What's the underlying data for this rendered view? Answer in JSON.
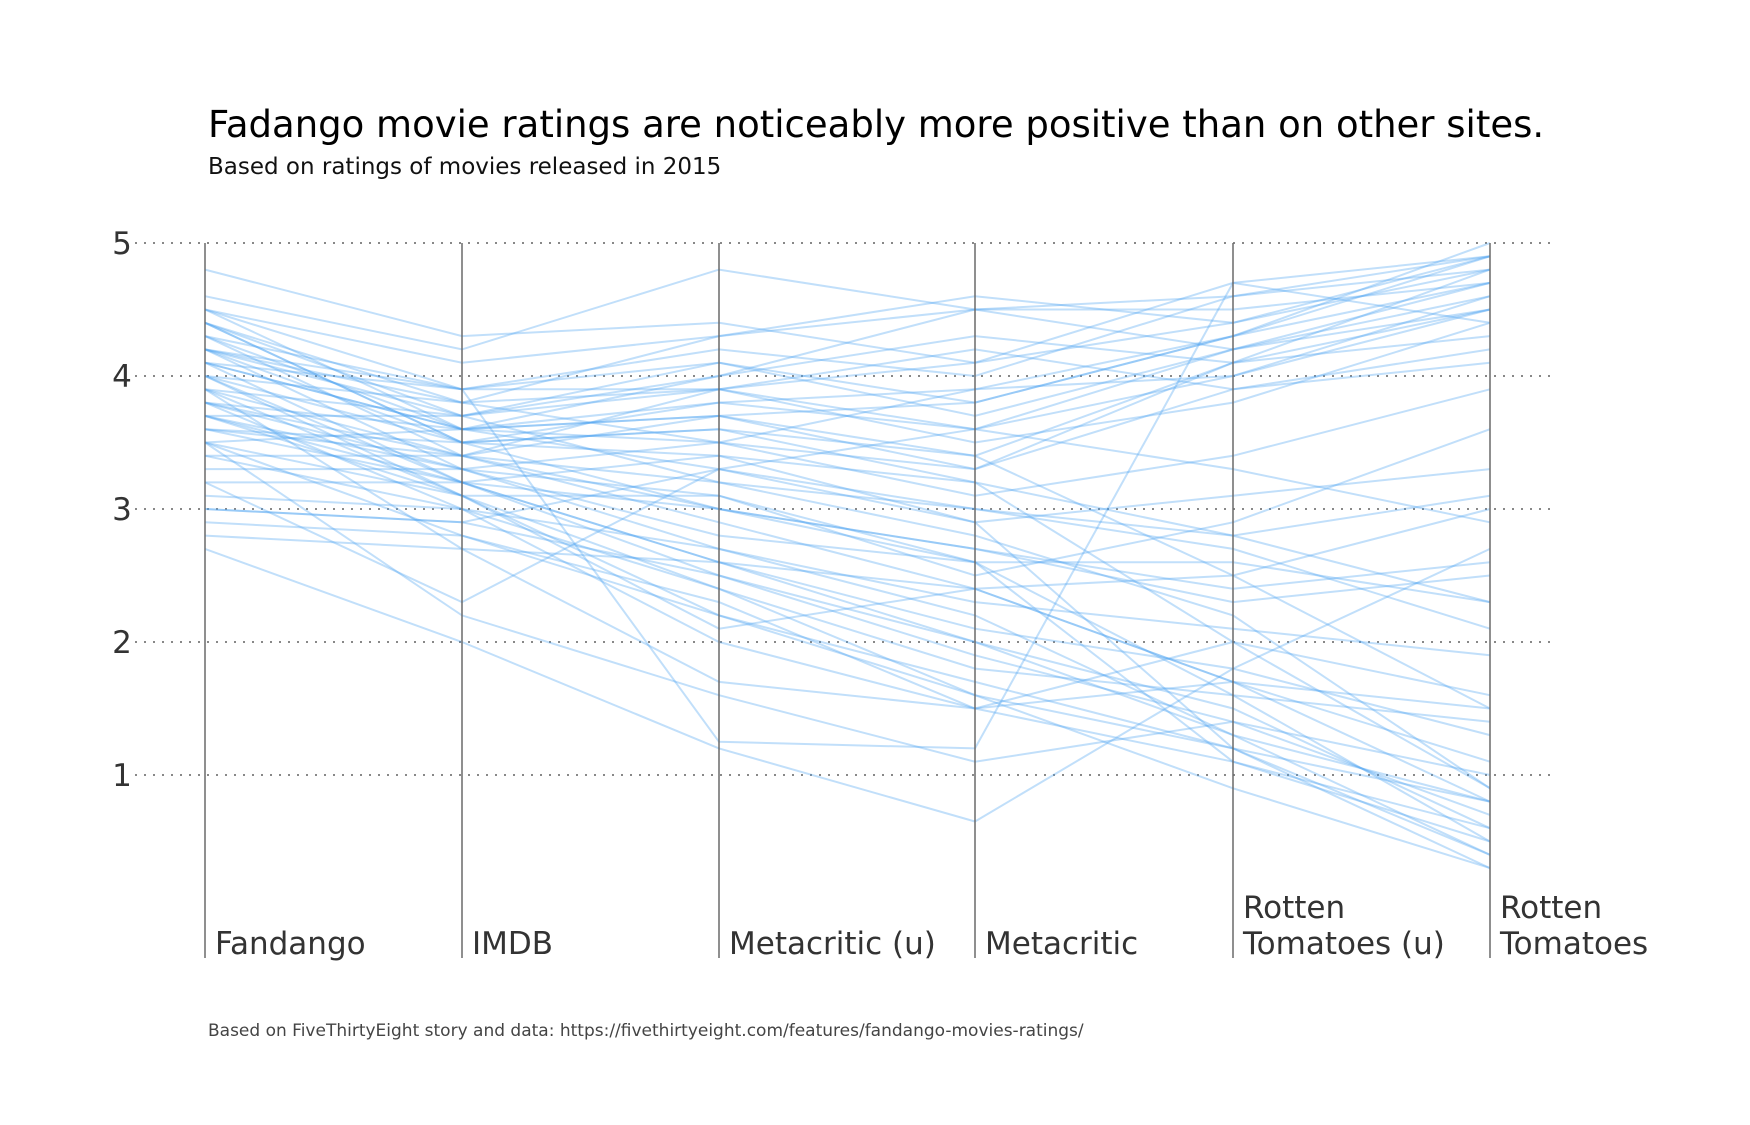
{
  "chart_data": {
    "type": "parallel-coordinates",
    "title": "Fadango movie ratings are noticeably more positive than on other sites.",
    "subtitle": "Based on ratings of movies released in 2015",
    "caption": "Based on FiveThirtyEight story and data: https://fivethirtyeight.com/features/fandango-movies-ratings/",
    "axes": [
      {
        "label_lines": [
          "Fandango"
        ]
      },
      {
        "label_lines": [
          "IMDB"
        ]
      },
      {
        "label_lines": [
          "Metacritic (u)"
        ]
      },
      {
        "label_lines": [
          "Metacritic"
        ]
      },
      {
        "label_lines": [
          "Rotten",
          "Tomatoes (u)"
        ]
      },
      {
        "label_lines": [
          "Rotten",
          "Tomatoes"
        ]
      }
    ],
    "yticks": [
      1,
      2,
      3,
      4,
      5
    ],
    "ylim": [
      0,
      5
    ],
    "grid": true,
    "line_color": "#4da3f2",
    "line_opacity": 0.35,
    "series": [
      {
        "values": [
          4.8,
          4.3,
          4.4,
          4.1,
          4.7,
          4.9
        ]
      },
      {
        "values": [
          4.6,
          4.2,
          4.8,
          4.5,
          4.2,
          4.7
        ]
      },
      {
        "values": [
          4.5,
          4.1,
          4.3,
          4.6,
          4.4,
          4.9
        ]
      },
      {
        "values": [
          4.5,
          3.9,
          3.9,
          3.6,
          4.0,
          4.6
        ]
      },
      {
        "values": [
          4.5,
          3.6,
          3.7,
          3.4,
          2.5,
          1.5
        ]
      },
      {
        "values": [
          4.4,
          3.8,
          4.3,
          4.5,
          4.5,
          4.7
        ]
      },
      {
        "values": [
          4.4,
          3.7,
          3.2,
          2.8,
          2.2,
          0.9
        ]
      },
      {
        "values": [
          4.4,
          3.5,
          3.0,
          2.6,
          1.6,
          0.5
        ]
      },
      {
        "values": [
          4.3,
          3.9,
          4.2,
          4.0,
          4.6,
          4.8
        ]
      },
      {
        "values": [
          4.3,
          3.6,
          3.5,
          3.3,
          3.9,
          4.2
        ]
      },
      {
        "values": [
          4.3,
          3.4,
          2.9,
          2.4,
          1.7,
          0.8
        ]
      },
      {
        "values": [
          4.2,
          3.7,
          4.0,
          4.3,
          4.1,
          4.5
        ]
      },
      {
        "values": [
          4.2,
          3.5,
          3.8,
          3.6,
          3.3,
          2.9
        ]
      },
      {
        "values": [
          4.2,
          3.3,
          2.7,
          2.2,
          1.3,
          0.4
        ]
      },
      {
        "values": [
          4.1,
          3.9,
          4.1,
          3.8,
          4.3,
          5.0
        ]
      },
      {
        "values": [
          4.1,
          3.6,
          3.3,
          3.0,
          2.7,
          2.1
        ]
      },
      {
        "values": [
          4.1,
          3.2,
          2.5,
          1.9,
          1.4,
          0.7
        ]
      },
      {
        "values": [
          4.0,
          3.8,
          3.9,
          4.1,
          4.4,
          4.8
        ]
      },
      {
        "values": [
          4.0,
          3.5,
          3.4,
          2.9,
          3.1,
          3.3
        ]
      },
      {
        "values": [
          4.0,
          3.2,
          2.6,
          2.1,
          1.8,
          1.3
        ]
      },
      {
        "values": [
          3.9,
          3.7,
          4.1,
          3.7,
          4.2,
          4.6
        ]
      },
      {
        "values": [
          3.9,
          3.4,
          3.0,
          2.7,
          2.4,
          2.6
        ]
      },
      {
        "values": [
          3.9,
          3.1,
          2.4,
          1.6,
          1.2,
          0.3
        ]
      },
      {
        "values": [
          3.8,
          3.6,
          3.8,
          3.9,
          4.0,
          4.5
        ]
      },
      {
        "values": [
          3.8,
          3.3,
          3.1,
          2.5,
          2.9,
          3.6
        ]
      },
      {
        "values": [
          3.8,
          3.0,
          2.0,
          1.5,
          1.7,
          1.1
        ]
      },
      {
        "values": [
          3.7,
          3.7,
          3.9,
          3.5,
          3.8,
          4.4
        ]
      },
      {
        "values": [
          3.7,
          3.3,
          2.8,
          2.6,
          2.6,
          2.3
        ]
      },
      {
        "values": [
          3.7,
          3.2,
          3.4,
          3.2,
          2.0,
          1.6
        ]
      },
      {
        "values": [
          3.6,
          3.5,
          3.6,
          3.4,
          4.1,
          4.3
        ]
      },
      {
        "values": [
          3.6,
          3.2,
          2.6,
          2.0,
          1.5,
          0.6
        ]
      },
      {
        "values": [
          3.5,
          3.6,
          3.7,
          3.8,
          4.3,
          4.7
        ]
      },
      {
        "values": [
          3.5,
          3.1,
          2.2,
          1.7,
          1.2,
          0.8
        ]
      },
      {
        "values": [
          3.4,
          3.4,
          3.2,
          3.0,
          2.8,
          3.1
        ]
      },
      {
        "values": [
          3.4,
          3.0,
          2.4,
          1.8,
          1.6,
          1.4
        ]
      },
      {
        "values": [
          3.3,
          3.3,
          3.5,
          3.1,
          3.4,
          3.9
        ]
      },
      {
        "values": [
          3.2,
          3.2,
          3.0,
          2.7,
          2.3,
          2.5
        ]
      },
      {
        "values": [
          3.1,
          3.0,
          2.7,
          2.3,
          2.1,
          1.9
        ]
      },
      {
        "values": [
          3.0,
          2.9,
          2.5,
          2.0,
          1.3,
          0.8
        ]
      },
      {
        "values": [
          2.9,
          2.8,
          2.3,
          1.5,
          1.1,
          0.5
        ]
      },
      {
        "values": [
          2.8,
          2.7,
          2.6,
          2.4,
          1.7,
          1.5
        ]
      },
      {
        "values": [
          2.7,
          2.0,
          1.2,
          0.65,
          1.8,
          2.7
        ]
      },
      {
        "values": [
          3.5,
          2.2,
          1.6,
          1.1,
          1.4,
          1.0
        ]
      },
      {
        "values": [
          4.2,
          3.9,
          1.25,
          1.2,
          4.7,
          4.4
        ]
      },
      {
        "values": [
          3.9,
          2.7,
          1.7,
          1.5,
          2.0,
          0.9
        ]
      },
      {
        "values": [
          4.1,
          3.6,
          4.0,
          4.5,
          4.6,
          4.9
        ]
      },
      {
        "values": [
          3.6,
          3.4,
          3.9,
          4.2,
          3.9,
          4.1
        ]
      },
      {
        "values": [
          3.2,
          2.3,
          3.3,
          2.9,
          1.2,
          0.4
        ]
      },
      {
        "values": [
          4.0,
          3.1,
          3.1,
          2.6,
          1.1,
          0.6
        ]
      },
      {
        "values": [
          3.8,
          3.4,
          3.7,
          3.3,
          4.1,
          4.8
        ]
      },
      {
        "values": [
          4.4,
          3.5,
          3.6,
          3.2,
          2.8,
          2.3
        ]
      },
      {
        "values": [
          3.7,
          3.1,
          2.1,
          2.4,
          2.5,
          3.0
        ]
      },
      {
        "values": [
          3.0,
          2.9,
          3.3,
          3.6,
          4.2,
          4.5
        ]
      },
      {
        "values": [
          4.2,
          3.8,
          3.5,
          3.9,
          4.3,
          4.9
        ]
      },
      {
        "values": [
          3.5,
          2.8,
          2.2,
          1.6,
          0.9,
          0.3
        ]
      }
    ]
  }
}
